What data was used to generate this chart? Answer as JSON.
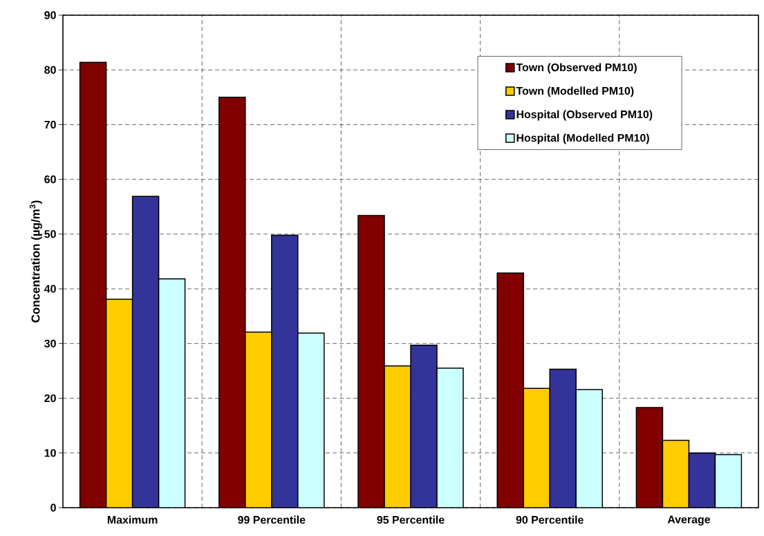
{
  "chart_data": {
    "type": "bar",
    "ylabel": "Concentration (µg/m$^{3}$)",
    "categories": [
      "Maximum",
      "99 Percentile",
      "95 Percentile",
      "90 Percentile",
      "Average"
    ],
    "series": [
      {
        "name": "Town (Observed PM10)",
        "color": "#800000",
        "values": [
          81.4,
          75.0,
          53.4,
          42.9,
          18.3
        ]
      },
      {
        "name": "Town (Modelled PM10)",
        "color": "#ffcc00",
        "values": [
          38.1,
          32.1,
          25.9,
          21.8,
          12.3
        ]
      },
      {
        "name": "Hospital (Observed PM10)",
        "color": "#333399",
        "values": [
          56.9,
          49.8,
          29.7,
          25.3,
          10.0
        ]
      },
      {
        "name": "Hospital (Modelled PM10)",
        "color": "#ccffff",
        "values": [
          41.8,
          31.9,
          25.5,
          21.6,
          9.7
        ]
      }
    ],
    "ylim": [
      0,
      90
    ],
    "yticks": [
      0,
      10,
      20,
      30,
      40,
      50,
      60,
      70,
      80,
      90
    ],
    "grid": true,
    "legend": "top right"
  }
}
